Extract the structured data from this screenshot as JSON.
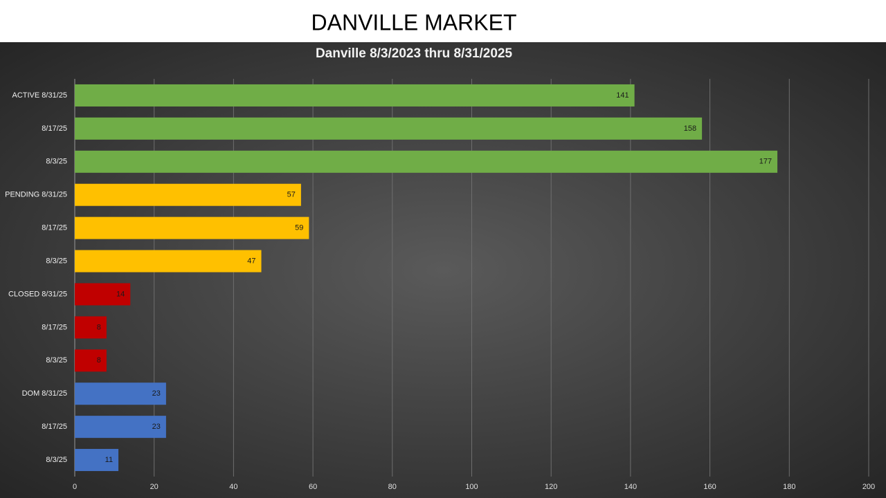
{
  "header": {
    "title": "DANVILLE MARKET"
  },
  "chart_data": {
    "type": "bar",
    "orientation": "horizontal",
    "title": "Danville 8/3/2023 thru 8/31/2025",
    "categories": [
      "ACTIVE 8/31/25",
      "8/17/25",
      "8/3/25",
      "PENDING 8/31/25",
      "8/17/25",
      "8/3/25",
      "CLOSED 8/31/25",
      "8/17/25",
      "8/3/25",
      "DOM 8/31/25",
      "8/17/25",
      "8/3/25"
    ],
    "values": [
      141,
      158,
      177,
      57,
      59,
      47,
      14,
      8,
      8,
      23,
      23,
      11
    ],
    "colors": [
      "#70ad47",
      "#70ad47",
      "#70ad47",
      "#ffc000",
      "#ffc000",
      "#ffc000",
      "#c00000",
      "#c00000",
      "#c00000",
      "#4472c4",
      "#4472c4",
      "#4472c4"
    ],
    "xlim": [
      0,
      200
    ],
    "xticks": [
      0,
      20,
      40,
      60,
      80,
      100,
      120,
      140,
      160,
      180,
      200
    ],
    "grid": true
  }
}
